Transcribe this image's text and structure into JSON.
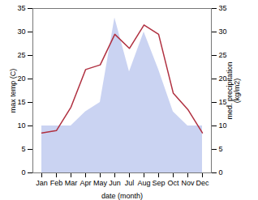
{
  "chart_data": {
    "type": "line",
    "categories": [
      "Jan",
      "Feb",
      "Mar",
      "Apr",
      "May",
      "Jun",
      "Jul",
      "Aug",
      "Sep",
      "Oct",
      "Nov",
      "Dec"
    ],
    "xlabel": "date (month)",
    "ylabel": "max temp (C)",
    "y2label": "med. precipitation\n(kg/m2)",
    "ylim": [
      0,
      35
    ],
    "yticks": [
      0,
      5,
      10,
      15,
      20,
      25,
      30,
      35
    ],
    "y2lim": [
      0,
      35
    ],
    "y2ticks": [
      0,
      5,
      10,
      15,
      20,
      25,
      30,
      35
    ],
    "grid": false,
    "series": [
      {
        "type": "area",
        "axis": "y2",
        "color": "#b8c4ee",
        "values": [
          10.0,
          10.0,
          10.0,
          13.0,
          15.0,
          33.0,
          21.5,
          30.0,
          22.0,
          13.0,
          10.0,
          10.0
        ]
      },
      {
        "type": "line",
        "color": "#b03040",
        "values": [
          8.5,
          9.0,
          14.0,
          22.0,
          23.0,
          29.5,
          26.5,
          31.5,
          29.5,
          17.0,
          13.5,
          8.5
        ]
      }
    ]
  }
}
